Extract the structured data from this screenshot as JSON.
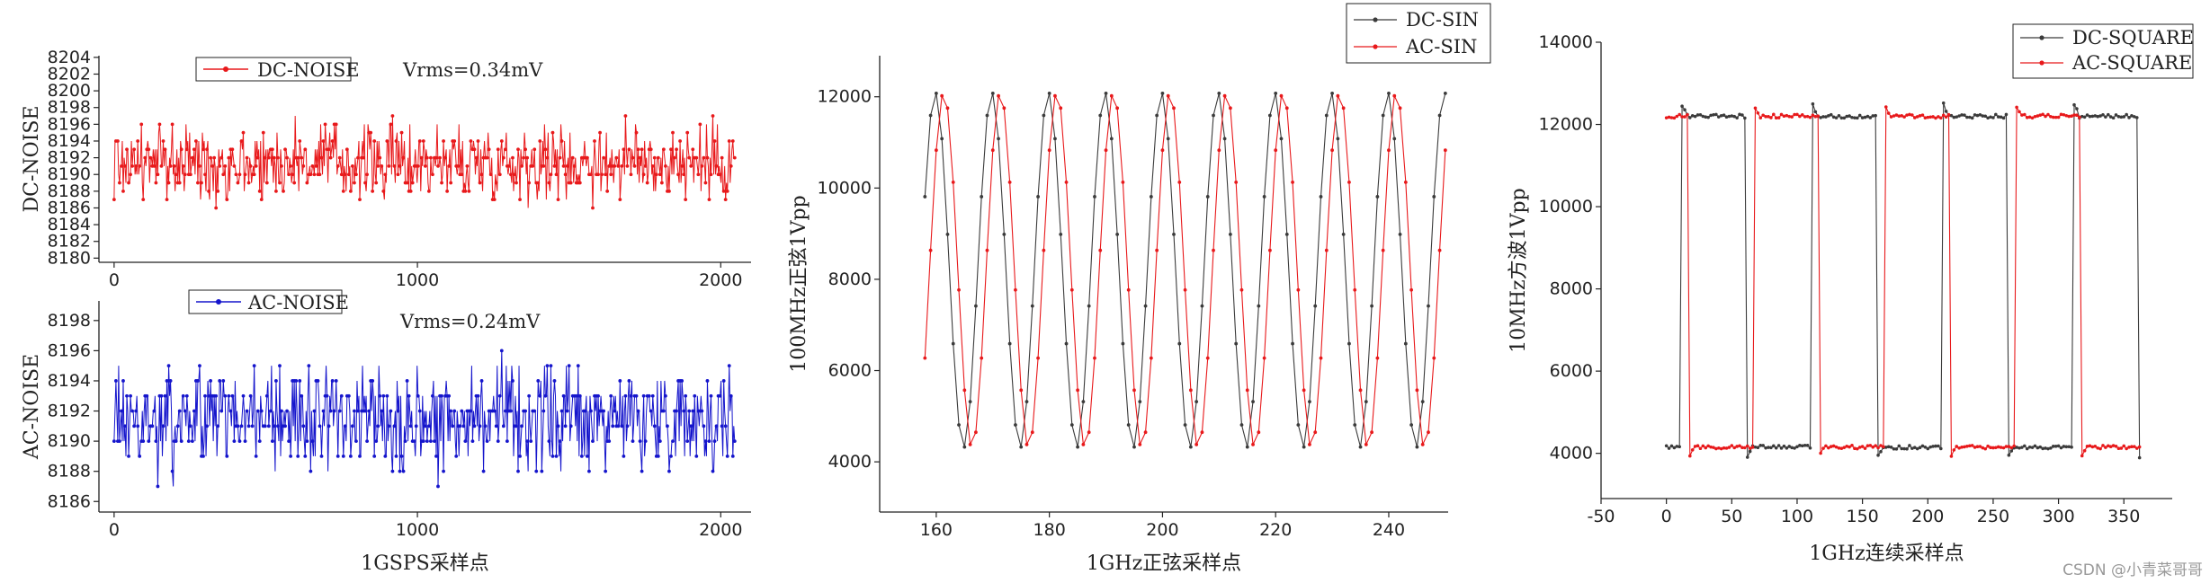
{
  "colors": {
    "red": "#e8191b",
    "blue": "#1515cc",
    "dark": "#3b3b3b",
    "axis": "#222222"
  },
  "watermark": "CSDN @小青菜哥哥",
  "chart_data": [
    {
      "id": "dc-noise",
      "type": "line",
      "ylabel": "DC-NOISE",
      "xlim": [
        -50,
        2100
      ],
      "ylim": [
        8179.5,
        8204.2
      ],
      "xticks": [
        0,
        1000,
        2000
      ],
      "yticks": [
        8180,
        8182,
        8184,
        8186,
        8188,
        8190,
        8192,
        8194,
        8196,
        8198,
        8200,
        8202,
        8204
      ],
      "x_range": [
        0,
        2047
      ],
      "center": 8191.5,
      "spread": 4.4,
      "series": [
        {
          "name": "DC-NOISE",
          "color": "#e8191b"
        }
      ],
      "annotation": "Vrms=0.34mV"
    },
    {
      "id": "ac-noise",
      "type": "line",
      "ylabel": "AC-NOISE",
      "xlim": [
        -50,
        2100
      ],
      "ylim": [
        8185.3,
        8199.3
      ],
      "xticks": [
        0,
        1000,
        2000
      ],
      "xtick_labels": [
        "0",
        "1000",
        "2000"
      ],
      "yticks": [
        8186,
        8188,
        8190,
        8192,
        8194,
        8196,
        8198
      ],
      "xlabel": "1GSPS采样点",
      "x_range": [
        0,
        2047
      ],
      "center": 8191.6,
      "spread": 3.2,
      "series": [
        {
          "name": "AC-NOISE",
          "color": "#1515cc"
        }
      ],
      "annotation": "Vrms=0.24mV"
    },
    {
      "id": "sin",
      "type": "line",
      "ylabel": "100MHz正弦1Vpp",
      "xlabel": "1GHz正弦采样点",
      "xlim": [
        150,
        250.5
      ],
      "ylim": [
        2900,
        12900
      ],
      "xticks": [
        160,
        180,
        200,
        220,
        240
      ],
      "yticks": [
        4000,
        6000,
        8000,
        10000,
        12000
      ],
      "x_range": [
        158,
        250
      ],
      "period": 10,
      "amp": 3900,
      "offset": 8200,
      "series": [
        {
          "name": "DC-SIN",
          "color": "#3b3b3b",
          "phase": 0.02
        },
        {
          "name": "AC-SIN",
          "color": "#e8191b",
          "phase": -0.13
        }
      ]
    },
    {
      "id": "square",
      "type": "line",
      "ylabel": "10MHz方波1Vpp",
      "xlabel": "1GHz连续采样点",
      "xlim": [
        -50,
        387
      ],
      "ylim": [
        2900,
        14000
      ],
      "xticks": [
        -50,
        0,
        50,
        100,
        150,
        200,
        250,
        300,
        350
      ],
      "yticks": [
        4000,
        6000,
        8000,
        10000,
        12000,
        14000
      ],
      "x_range": [
        0,
        362
      ],
      "period": 100,
      "high": 12200,
      "low": 4150,
      "series": [
        {
          "name": "DC-SQUARE",
          "color": "#3b3b3b",
          "rise": 12,
          "fall": 62
        },
        {
          "name": "AC-SQUARE",
          "color": "#e8191b",
          "rise": 67,
          "fall": 17
        }
      ]
    }
  ]
}
